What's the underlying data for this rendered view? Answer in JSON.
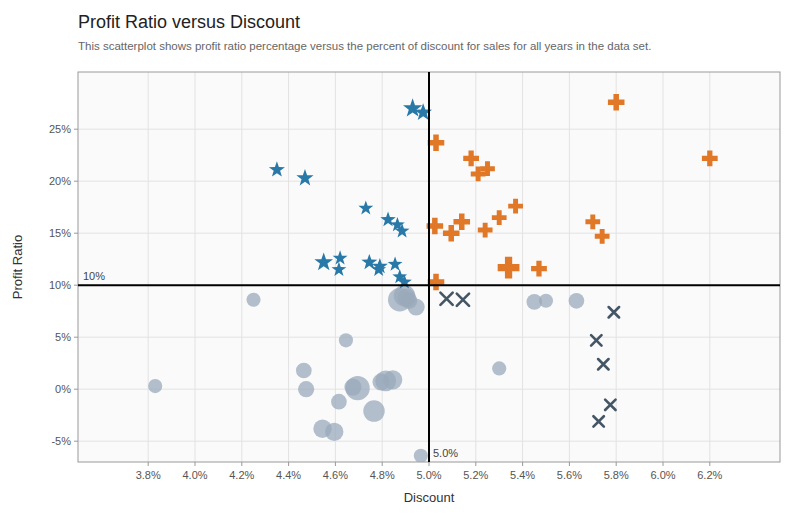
{
  "chart_data": {
    "type": "scatter",
    "title": "Profit Ratio versus Discount",
    "subtitle": "This scatterplot shows profit ratio percentage versus the percent of discount for sales for all years in the data set.",
    "x_label": "Discount",
    "y_label": "Profit Ratio",
    "xlim": [
      0.035,
      0.065
    ],
    "ylim": [
      -0.07,
      0.305
    ],
    "xticks": [
      {
        "value": 0.038,
        "label": "3.8%"
      },
      {
        "value": 0.04,
        "label": "4.0%"
      },
      {
        "value": 0.042,
        "label": "4.2%"
      },
      {
        "value": 0.044,
        "label": "4.4%"
      },
      {
        "value": 0.046,
        "label": "4.6%"
      },
      {
        "value": 0.048,
        "label": "4.8%"
      },
      {
        "value": 0.05,
        "label": "5.0%"
      },
      {
        "value": 0.052,
        "label": "5.2%"
      },
      {
        "value": 0.054,
        "label": "5.4%"
      },
      {
        "value": 0.056,
        "label": "5.6%"
      },
      {
        "value": 0.058,
        "label": "5.8%"
      },
      {
        "value": 0.06,
        "label": "6.0%"
      },
      {
        "value": 0.062,
        "label": "6.2%"
      }
    ],
    "yticks": [
      {
        "value": -0.05,
        "label": "-5%"
      },
      {
        "value": 0.0,
        "label": "0%"
      },
      {
        "value": 0.05,
        "label": "5%"
      },
      {
        "value": 0.1,
        "label": "10%"
      },
      {
        "value": 0.15,
        "label": "15%"
      },
      {
        "value": 0.2,
        "label": "20%"
      },
      {
        "value": 0.25,
        "label": "25%"
      }
    ],
    "grid": true,
    "annotations": [
      {
        "axis": "x",
        "value": 0.05,
        "label": "5.0%"
      },
      {
        "axis": "y",
        "value": 0.1,
        "label": "10%"
      }
    ],
    "series": [
      {
        "marker": "circle",
        "color": "#9aaabb",
        "x": [
          0.0383,
          0.0425,
          0.04465,
          0.04475,
          0.04545,
          0.04595,
          0.04615,
          0.04645,
          0.04675,
          0.04695,
          0.04765,
          0.04795,
          0.04815,
          0.04845,
          0.04875,
          0.04895,
          0.04905,
          0.04915,
          0.04945,
          0.04965,
          0.053,
          0.0545,
          0.055,
          0.0563
        ],
        "values": [
          0.003,
          0.086,
          0.018,
          0.0,
          -0.038,
          -0.041,
          -0.012,
          0.047,
          0.002,
          0.001,
          -0.021,
          0.007,
          0.008,
          0.009,
          0.086,
          0.09,
          0.088,
          0.085,
          0.079,
          -0.064,
          0.02,
          0.084,
          0.085,
          0.085
        ],
        "sizes": [
          130,
          130,
          160,
          170,
          220,
          220,
          160,
          130,
          190,
          380,
          300,
          190,
          280,
          240,
          360,
          300,
          220,
          175,
          190,
          130,
          130,
          160,
          130,
          160
        ]
      },
      {
        "marker": "star",
        "color": "#2878a8",
        "x": [
          0.0493,
          0.04975,
          0.0435,
          0.0447,
          0.0473,
          0.04825,
          0.04865,
          0.04885,
          0.0455,
          0.04615,
          0.04745,
          0.04785,
          0.0462,
          0.0479,
          0.04855,
          0.04875,
          0.04895
        ],
        "values": [
          0.27,
          0.266,
          0.211,
          0.203,
          0.174,
          0.163,
          0.158,
          0.152,
          0.122,
          0.115,
          0.122,
          0.115,
          0.126,
          0.118,
          0.12,
          0.108,
          0.103
        ],
        "sizes": [
          200,
          170,
          140,
          160,
          120,
          130,
          120,
          120,
          190,
          120,
          140,
          120,
          120,
          140,
          120,
          120,
          120
        ]
      },
      {
        "marker": "plus",
        "color": "#e07828",
        "x": [
          0.0503,
          0.0518,
          0.0525,
          0.0521,
          0.0514,
          0.0524,
          0.053,
          0.0537,
          0.05025,
          0.05095,
          0.0534,
          0.0547,
          0.057,
          0.0574,
          0.058,
          0.062,
          0.0503
        ],
        "values": [
          0.237,
          0.222,
          0.212,
          0.207,
          0.161,
          0.153,
          0.165,
          0.176,
          0.157,
          0.15,
          0.117,
          0.116,
          0.161,
          0.147,
          0.276,
          0.222,
          0.103
        ],
        "sizes": [
          220,
          200,
          175,
          175,
          220,
          175,
          175,
          175,
          220,
          220,
          380,
          200,
          175,
          175,
          220,
          200,
          220
        ]
      },
      {
        "marker": "x",
        "color": "#445566",
        "x": [
          0.05075,
          0.05145,
          0.0579,
          0.05715,
          0.05745,
          0.05775,
          0.05725
        ],
        "values": [
          0.087,
          0.086,
          0.074,
          0.047,
          0.024,
          -0.015,
          -0.031
        ],
        "sizes": [
          200,
          200,
          145,
          145,
          145,
          145,
          145
        ]
      }
    ]
  }
}
